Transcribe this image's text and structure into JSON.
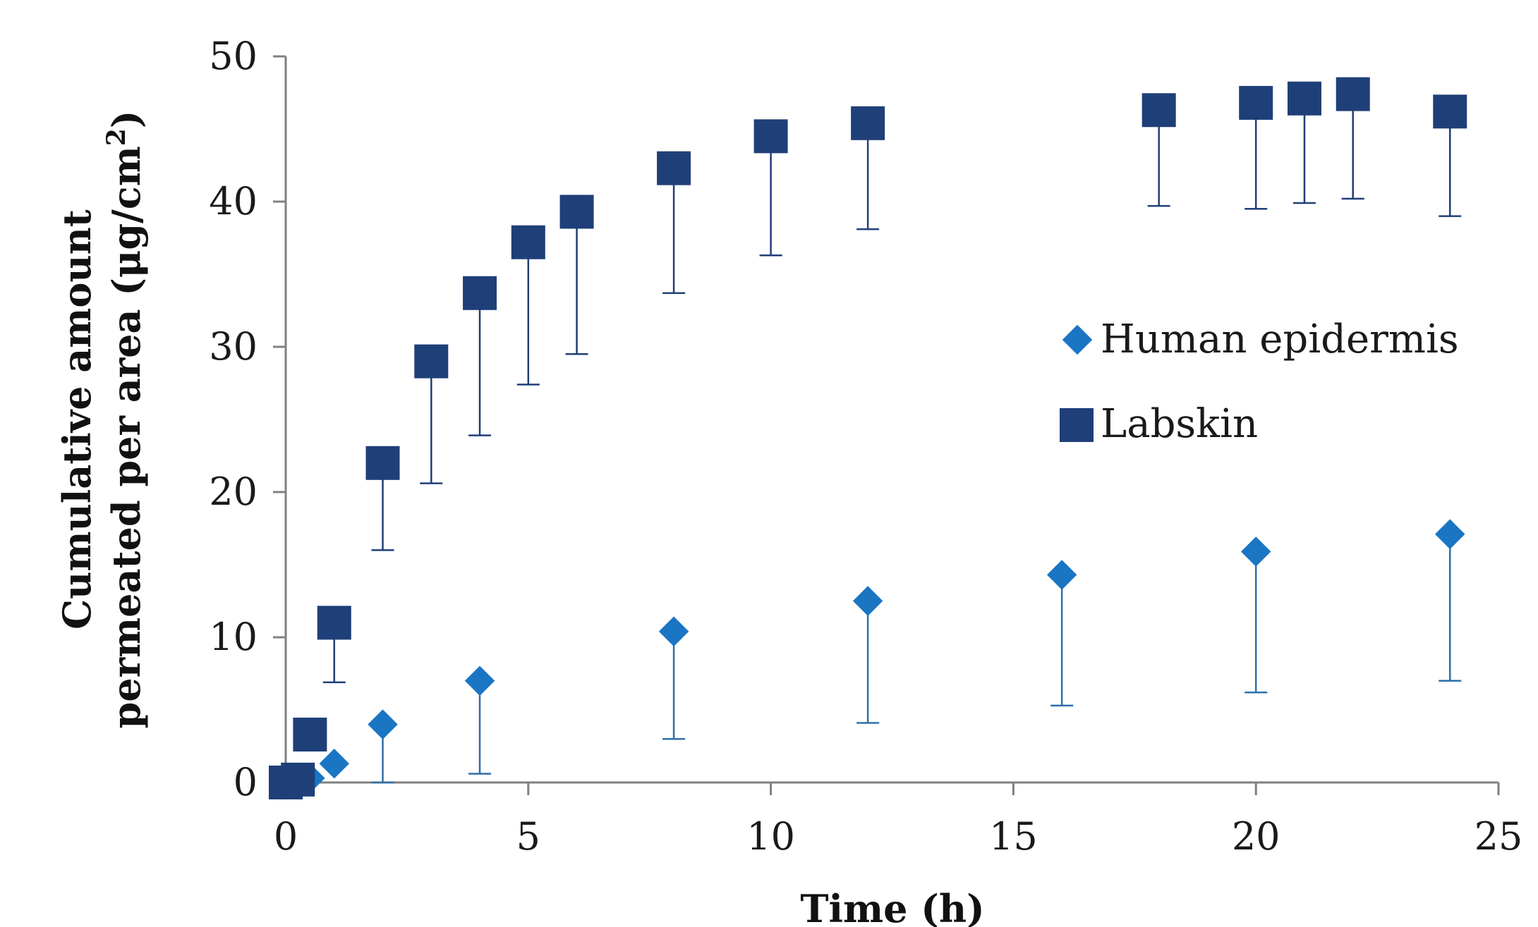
{
  "chart_data": {
    "type": "scatter",
    "title": "",
    "xlabel": "Time (h)",
    "ylabel_line1": "Cumulative amount",
    "ylabel_line2_prefix": "permeated per area (μg/cm",
    "ylabel_line2_sup": "2",
    "ylabel_line2_suffix": ")",
    "xlim": [
      0,
      25
    ],
    "ylim": [
      0,
      50
    ],
    "xticks": [
      "0",
      "5",
      "10",
      "15",
      "20",
      "25"
    ],
    "yticks": [
      "0",
      "10",
      "20",
      "30",
      "40",
      "50"
    ],
    "grid": false,
    "legend_position": "right",
    "series": [
      {
        "name": "Human epidermis",
        "marker": "diamond",
        "color": "#1a75c3",
        "error_color": "#2e6fa8",
        "points": [
          {
            "x": 0,
            "y": 0,
            "err": 0
          },
          {
            "x": 0.25,
            "y": 0,
            "err": 0
          },
          {
            "x": 0.5,
            "y": 0.3,
            "err": 0
          },
          {
            "x": 1,
            "y": 1.3,
            "err": 0
          },
          {
            "x": 2,
            "y": 4.0,
            "err": 4.0
          },
          {
            "x": 4,
            "y": 7.0,
            "err": 6.4
          },
          {
            "x": 8,
            "y": 10.4,
            "err": 7.4
          },
          {
            "x": 12,
            "y": 12.5,
            "err": 8.4
          },
          {
            "x": 16,
            "y": 14.3,
            "err": 9.0
          },
          {
            "x": 20,
            "y": 15.9,
            "err": 9.7
          },
          {
            "x": 24,
            "y": 17.1,
            "err": 10.1
          }
        ]
      },
      {
        "name": "Labskin",
        "marker": "square",
        "color": "#1f3f78",
        "error_color": "#1f3f78",
        "points": [
          {
            "x": 0,
            "y": 0,
            "err": 0
          },
          {
            "x": 0.25,
            "y": 0.2,
            "err": 0
          },
          {
            "x": 0.5,
            "y": 3.3,
            "err": 0
          },
          {
            "x": 1,
            "y": 11.0,
            "err": 4.1
          },
          {
            "x": 2,
            "y": 22.0,
            "err": 6.0
          },
          {
            "x": 3,
            "y": 29.0,
            "err": 8.4
          },
          {
            "x": 4,
            "y": 33.7,
            "err": 9.8
          },
          {
            "x": 5,
            "y": 37.2,
            "err": 9.8
          },
          {
            "x": 6,
            "y": 39.3,
            "err": 9.8
          },
          {
            "x": 8,
            "y": 42.3,
            "err": 8.6
          },
          {
            "x": 10,
            "y": 44.5,
            "err": 8.2
          },
          {
            "x": 12,
            "y": 45.4,
            "err": 7.3
          },
          {
            "x": 18,
            "y": 46.3,
            "err": 6.6
          },
          {
            "x": 20,
            "y": 46.8,
            "err": 7.3
          },
          {
            "x": 21,
            "y": 47.1,
            "err": 7.2
          },
          {
            "x": 22,
            "y": 47.4,
            "err": 7.2
          },
          {
            "x": 24,
            "y": 46.2,
            "err": 7.2
          }
        ]
      }
    ]
  }
}
